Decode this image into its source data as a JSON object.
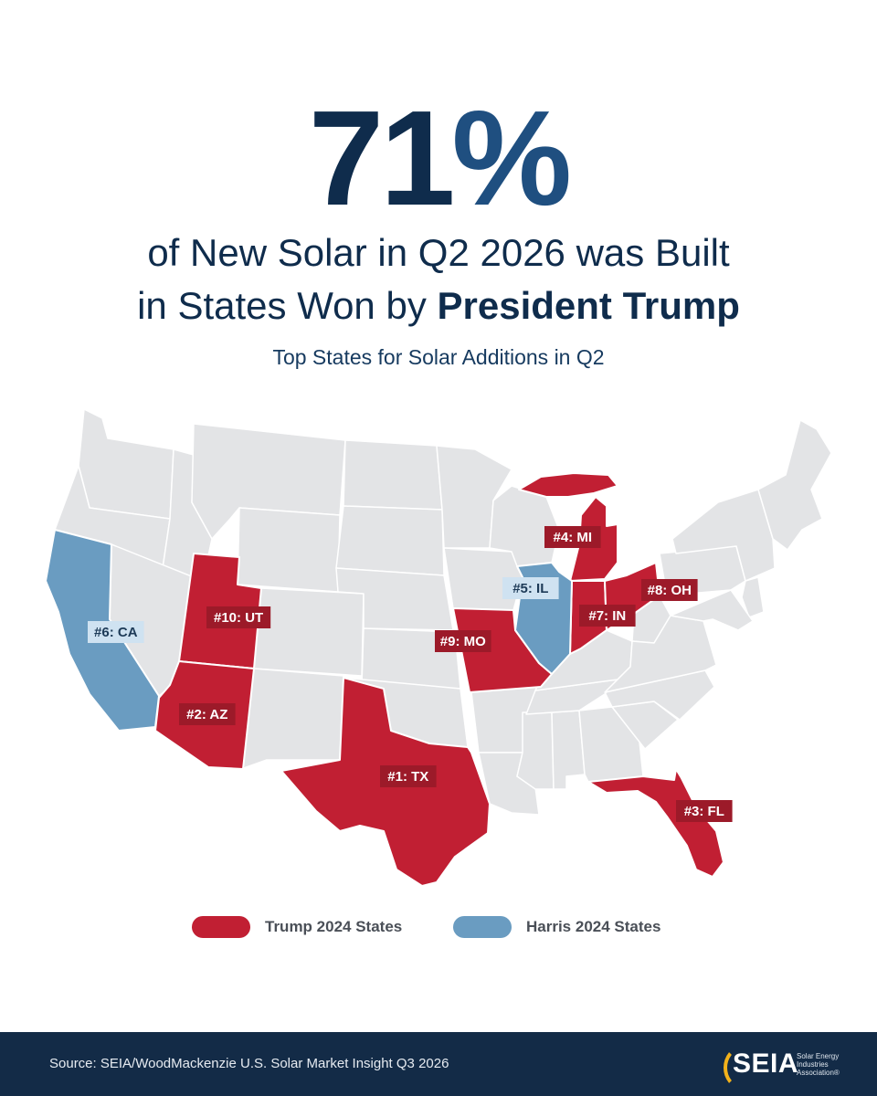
{
  "headline": {
    "number": "71",
    "percent_sign": "%"
  },
  "subhead": {
    "line1": "of New Solar in Q2 2026 was Built",
    "line2_prefix": "in States Won by ",
    "line2_strong": "President Trump"
  },
  "map_title": "Top States for Solar Additions in Q2",
  "map": {
    "colors": {
      "base": "#e3e4e6",
      "trump": "#c11f33",
      "harris": "#6a9cc1",
      "trump_label": "#9c1a29",
      "harris_label": "#cfe2f1",
      "border": "#ffffff"
    },
    "state_labels": [
      {
        "rank_label": "#1: TX",
        "party": "trump",
        "state": "TX"
      },
      {
        "rank_label": "#2: AZ",
        "party": "trump",
        "state": "AZ"
      },
      {
        "rank_label": "#3: FL",
        "party": "trump",
        "state": "FL"
      },
      {
        "rank_label": "#4: MI",
        "party": "trump",
        "state": "MI"
      },
      {
        "rank_label": "#5: IL",
        "party": "harris",
        "state": "IL"
      },
      {
        "rank_label": "#6: CA",
        "party": "harris",
        "state": "CA"
      },
      {
        "rank_label": "#7: IN",
        "party": "trump",
        "state": "IN"
      },
      {
        "rank_label": "#8: OH",
        "party": "trump",
        "state": "OH"
      },
      {
        "rank_label": "#9: MO",
        "party": "trump",
        "state": "MO"
      },
      {
        "rank_label": "#10: UT",
        "party": "trump",
        "state": "UT"
      }
    ]
  },
  "legend": {
    "trump": "Trump 2024 States",
    "harris": "Harris 2024 States"
  },
  "footer": {
    "source": "Source: SEIA/WoodMackenzie U.S. Solar Market Insight Q3 2026",
    "logo_word": "SEIA",
    "logo_tagline": "Solar Energy Industries Association®"
  }
}
